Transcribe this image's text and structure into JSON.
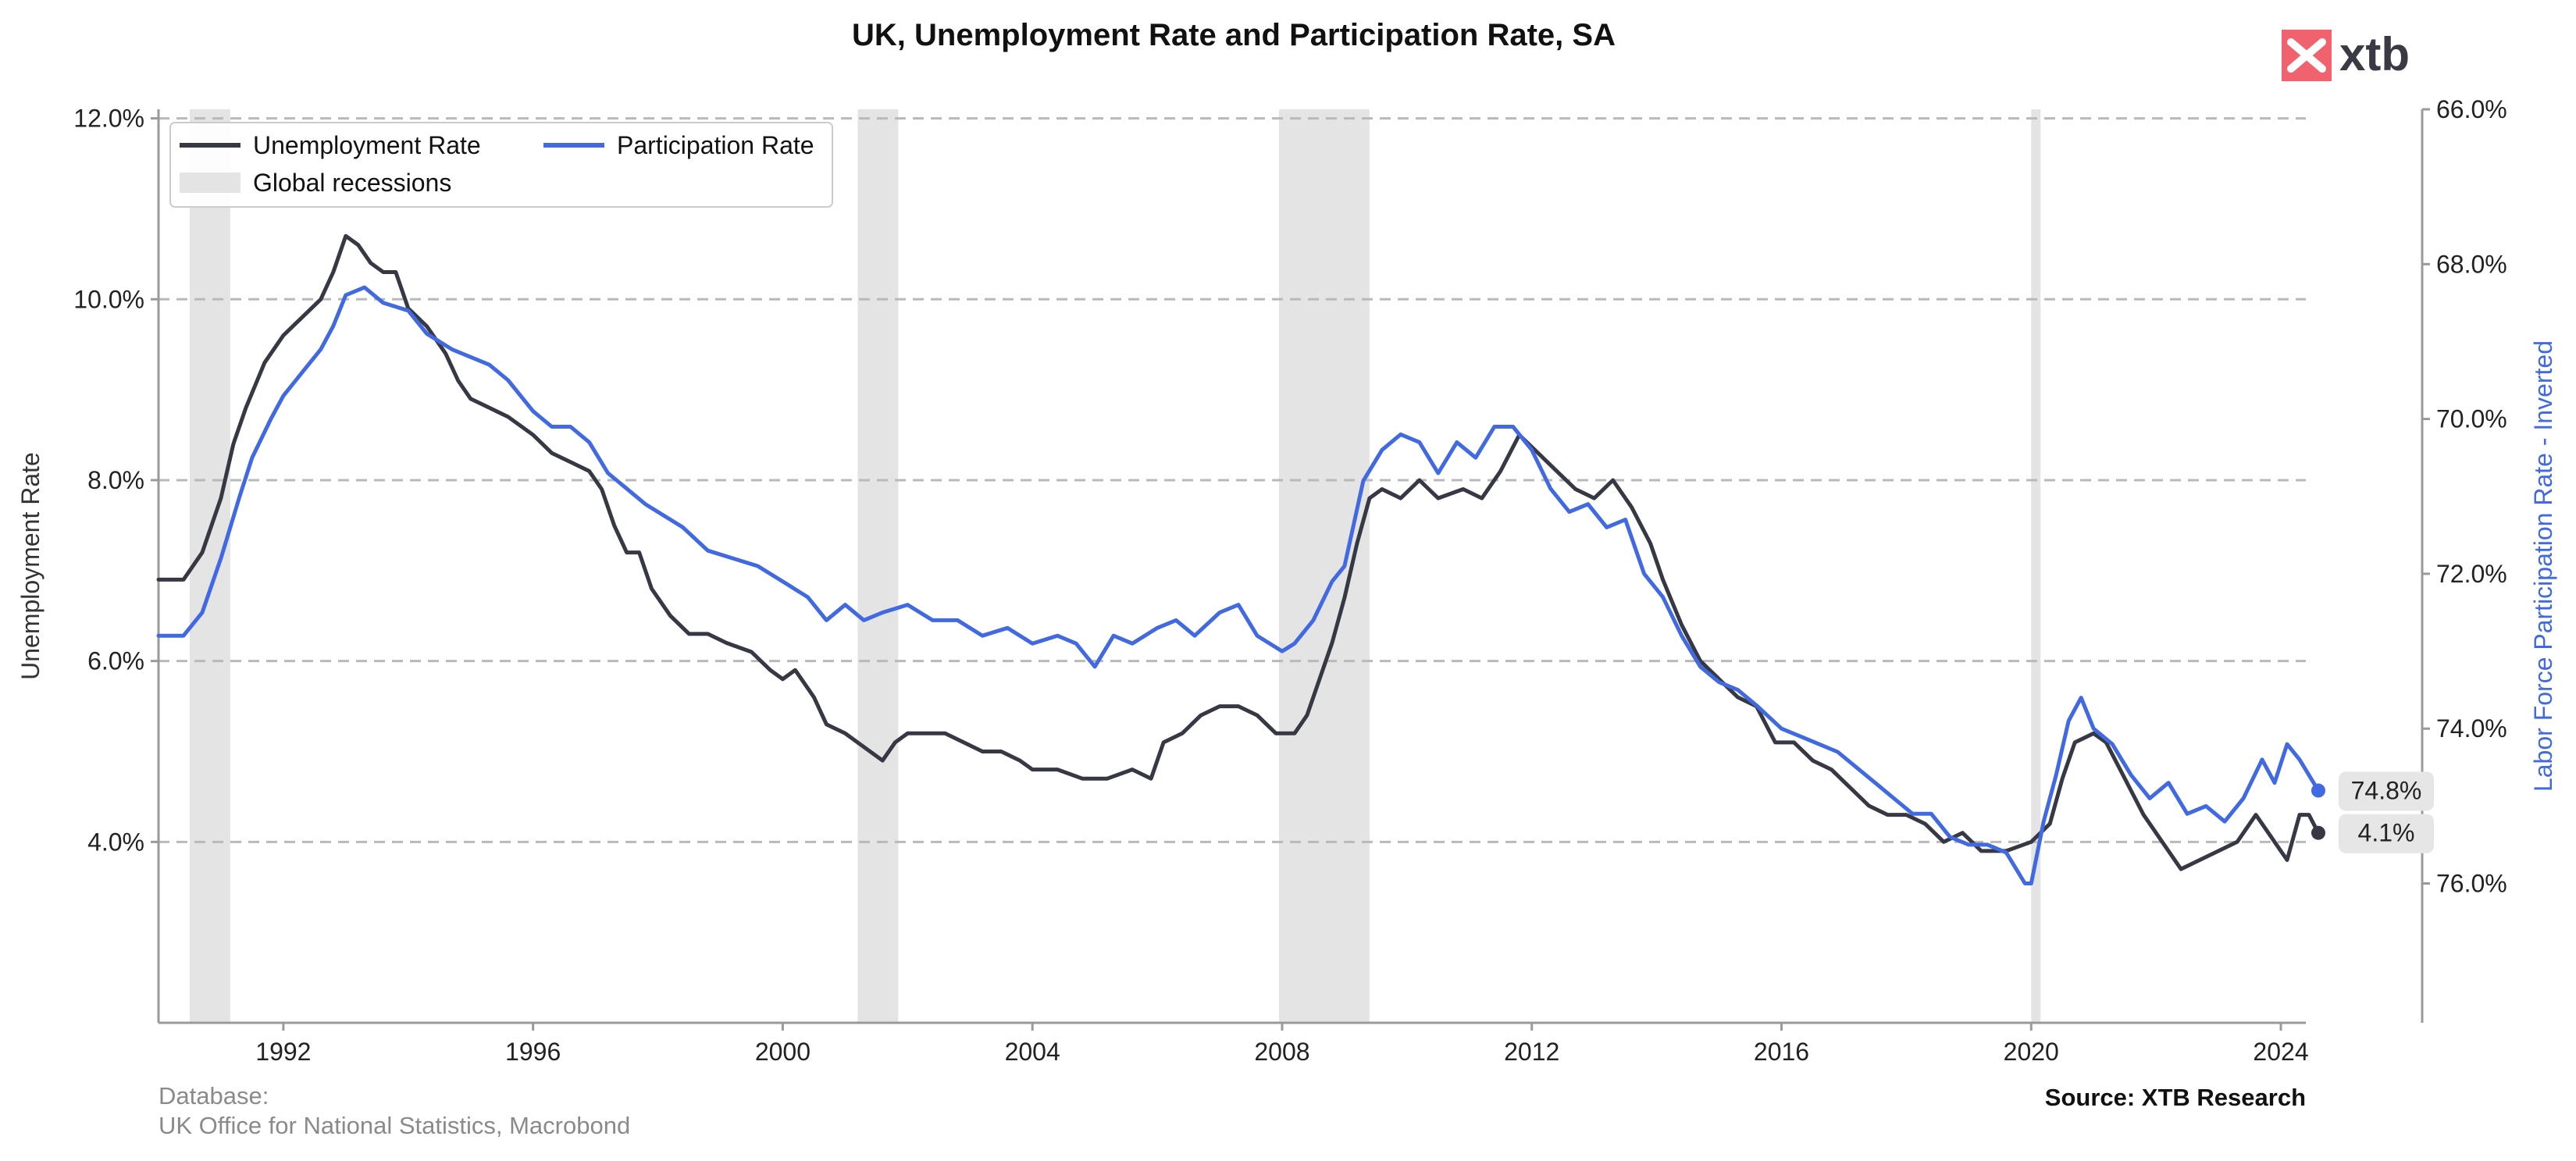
{
  "logo": {
    "text": "xtb",
    "color": "#f0626e"
  },
  "chart_data": {
    "type": "line",
    "title": "UK, Unemployment Rate and Participation Rate, SA",
    "ylabel": "Unemployment Rate",
    "ylabel_right": "Labor Force Participation Rate - Inverted",
    "xlim": [
      1990.0,
      2024.4
    ],
    "ylim": [
      2.0,
      12.1
    ],
    "ylim_right": [
      66.0,
      77.8
    ],
    "right_axis_inverted": true,
    "grid": "y-dashed",
    "legend_position": "top-left",
    "x_ticks": [
      1992,
      1996,
      2000,
      2004,
      2008,
      2012,
      2016,
      2020,
      2024
    ],
    "x_tick_labels": [
      "1992",
      "1996",
      "2000",
      "2004",
      "2008",
      "2012",
      "2016",
      "2020",
      "2024"
    ],
    "y_ticks": [
      4,
      6,
      8,
      10,
      12
    ],
    "y_tick_labels": [
      "4.0%",
      "6.0%",
      "8.0%",
      "10.0%",
      "12.0%"
    ],
    "y_ticks_right": [
      66,
      68,
      70,
      72,
      74,
      76
    ],
    "y_tick_labels_right": [
      "66.0%",
      "68.0%",
      "70.0%",
      "72.0%",
      "74.0%",
      "76.0%"
    ],
    "recessions": [
      [
        1990.5,
        1991.15
      ],
      [
        2001.2,
        2001.85
      ],
      [
        2007.95,
        2009.4
      ],
      [
        2020.0,
        2020.15
      ]
    ],
    "series": [
      {
        "name": "Unemployment Rate",
        "color": "#363844",
        "axis": "left",
        "last_label": "4.1%",
        "points": [
          [
            1990.0,
            6.9
          ],
          [
            1990.4,
            6.9
          ],
          [
            1990.7,
            7.2
          ],
          [
            1991.0,
            7.8
          ],
          [
            1991.2,
            8.4
          ],
          [
            1991.4,
            8.8
          ],
          [
            1991.7,
            9.3
          ],
          [
            1992.0,
            9.6
          ],
          [
            1992.3,
            9.8
          ],
          [
            1992.6,
            10.0
          ],
          [
            1992.8,
            10.3
          ],
          [
            1993.0,
            10.7
          ],
          [
            1993.2,
            10.6
          ],
          [
            1993.4,
            10.4
          ],
          [
            1993.6,
            10.3
          ],
          [
            1993.8,
            10.3
          ],
          [
            1994.0,
            9.9
          ],
          [
            1994.3,
            9.7
          ],
          [
            1994.6,
            9.4
          ],
          [
            1994.8,
            9.1
          ],
          [
            1995.0,
            8.9
          ],
          [
            1995.3,
            8.8
          ],
          [
            1995.6,
            8.7
          ],
          [
            1996.0,
            8.5
          ],
          [
            1996.3,
            8.3
          ],
          [
            1996.6,
            8.2
          ],
          [
            1996.9,
            8.1
          ],
          [
            1997.1,
            7.9
          ],
          [
            1997.3,
            7.5
          ],
          [
            1997.5,
            7.2
          ],
          [
            1997.7,
            7.2
          ],
          [
            1997.9,
            6.8
          ],
          [
            1998.2,
            6.5
          ],
          [
            1998.5,
            6.3
          ],
          [
            1998.8,
            6.3
          ],
          [
            1999.1,
            6.2
          ],
          [
            1999.5,
            6.1
          ],
          [
            1999.8,
            5.9
          ],
          [
            2000.0,
            5.8
          ],
          [
            2000.2,
            5.9
          ],
          [
            2000.5,
            5.6
          ],
          [
            2000.7,
            5.3
          ],
          [
            2001.0,
            5.2
          ],
          [
            2001.2,
            5.1
          ],
          [
            2001.4,
            5.0
          ],
          [
            2001.6,
            4.9
          ],
          [
            2001.8,
            5.1
          ],
          [
            2002.0,
            5.2
          ],
          [
            2002.3,
            5.2
          ],
          [
            2002.6,
            5.2
          ],
          [
            2002.9,
            5.1
          ],
          [
            2003.2,
            5.0
          ],
          [
            2003.5,
            5.0
          ],
          [
            2003.8,
            4.9
          ],
          [
            2004.0,
            4.8
          ],
          [
            2004.4,
            4.8
          ],
          [
            2004.8,
            4.7
          ],
          [
            2005.2,
            4.7
          ],
          [
            2005.6,
            4.8
          ],
          [
            2005.9,
            4.7
          ],
          [
            2006.1,
            5.1
          ],
          [
            2006.4,
            5.2
          ],
          [
            2006.7,
            5.4
          ],
          [
            2007.0,
            5.5
          ],
          [
            2007.3,
            5.5
          ],
          [
            2007.6,
            5.4
          ],
          [
            2007.9,
            5.2
          ],
          [
            2008.2,
            5.2
          ],
          [
            2008.4,
            5.4
          ],
          [
            2008.6,
            5.8
          ],
          [
            2008.8,
            6.2
          ],
          [
            2009.0,
            6.7
          ],
          [
            2009.2,
            7.3
          ],
          [
            2009.4,
            7.8
          ],
          [
            2009.6,
            7.9
          ],
          [
            2009.9,
            7.8
          ],
          [
            2010.2,
            8.0
          ],
          [
            2010.5,
            7.8
          ],
          [
            2010.9,
            7.9
          ],
          [
            2011.2,
            7.8
          ],
          [
            2011.5,
            8.1
          ],
          [
            2011.8,
            8.5
          ],
          [
            2012.1,
            8.3
          ],
          [
            2012.4,
            8.1
          ],
          [
            2012.7,
            7.9
          ],
          [
            2013.0,
            7.8
          ],
          [
            2013.3,
            8.0
          ],
          [
            2013.6,
            7.7
          ],
          [
            2013.9,
            7.3
          ],
          [
            2014.1,
            6.9
          ],
          [
            2014.4,
            6.4
          ],
          [
            2014.7,
            6.0
          ],
          [
            2015.0,
            5.8
          ],
          [
            2015.3,
            5.6
          ],
          [
            2015.6,
            5.5
          ],
          [
            2015.9,
            5.1
          ],
          [
            2016.2,
            5.1
          ],
          [
            2016.5,
            4.9
          ],
          [
            2016.8,
            4.8
          ],
          [
            2017.1,
            4.6
          ],
          [
            2017.4,
            4.4
          ],
          [
            2017.7,
            4.3
          ],
          [
            2018.0,
            4.3
          ],
          [
            2018.3,
            4.2
          ],
          [
            2018.6,
            4.0
          ],
          [
            2018.9,
            4.1
          ],
          [
            2019.2,
            3.9
          ],
          [
            2019.6,
            3.9
          ],
          [
            2020.0,
            4.0
          ],
          [
            2020.3,
            4.2
          ],
          [
            2020.5,
            4.7
          ],
          [
            2020.7,
            5.1
          ],
          [
            2021.0,
            5.2
          ],
          [
            2021.2,
            5.1
          ],
          [
            2021.5,
            4.7
          ],
          [
            2021.8,
            4.3
          ],
          [
            2022.1,
            4.0
          ],
          [
            2022.4,
            3.7
          ],
          [
            2022.7,
            3.8
          ],
          [
            2023.0,
            3.9
          ],
          [
            2023.3,
            4.0
          ],
          [
            2023.6,
            4.3
          ],
          [
            2023.9,
            4.0
          ],
          [
            2024.1,
            3.8
          ],
          [
            2024.3,
            4.3
          ],
          [
            2024.45,
            4.3
          ],
          [
            2024.6,
            4.1
          ]
        ]
      },
      {
        "name": "Participation Rate",
        "color": "#4169e1",
        "axis": "right",
        "last_label": "74.8%",
        "points": [
          [
            1990.0,
            72.8
          ],
          [
            1990.4,
            72.8
          ],
          [
            1990.7,
            72.5
          ],
          [
            1991.0,
            71.8
          ],
          [
            1991.3,
            71.0
          ],
          [
            1991.5,
            70.5
          ],
          [
            1991.8,
            70.0
          ],
          [
            1992.0,
            69.7
          ],
          [
            1992.3,
            69.4
          ],
          [
            1992.6,
            69.1
          ],
          [
            1992.8,
            68.8
          ],
          [
            1993.0,
            68.4
          ],
          [
            1993.3,
            68.3
          ],
          [
            1993.6,
            68.5
          ],
          [
            1994.0,
            68.6
          ],
          [
            1994.3,
            68.9
          ],
          [
            1994.7,
            69.1
          ],
          [
            1995.0,
            69.2
          ],
          [
            1995.3,
            69.3
          ],
          [
            1995.6,
            69.5
          ],
          [
            1996.0,
            69.9
          ],
          [
            1996.3,
            70.1
          ],
          [
            1996.6,
            70.1
          ],
          [
            1996.9,
            70.3
          ],
          [
            1997.2,
            70.7
          ],
          [
            1997.5,
            70.9
          ],
          [
            1997.8,
            71.1
          ],
          [
            1998.0,
            71.2
          ],
          [
            1998.4,
            71.4
          ],
          [
            1998.8,
            71.7
          ],
          [
            1999.2,
            71.8
          ],
          [
            1999.6,
            71.9
          ],
          [
            2000.0,
            72.1
          ],
          [
            2000.4,
            72.3
          ],
          [
            2000.7,
            72.6
          ],
          [
            2001.0,
            72.4
          ],
          [
            2001.3,
            72.6
          ],
          [
            2001.6,
            72.5
          ],
          [
            2002.0,
            72.4
          ],
          [
            2002.4,
            72.6
          ],
          [
            2002.8,
            72.6
          ],
          [
            2003.2,
            72.8
          ],
          [
            2003.6,
            72.7
          ],
          [
            2004.0,
            72.9
          ],
          [
            2004.4,
            72.8
          ],
          [
            2004.7,
            72.9
          ],
          [
            2005.0,
            73.2
          ],
          [
            2005.3,
            72.8
          ],
          [
            2005.6,
            72.9
          ],
          [
            2006.0,
            72.7
          ],
          [
            2006.3,
            72.6
          ],
          [
            2006.6,
            72.8
          ],
          [
            2007.0,
            72.5
          ],
          [
            2007.3,
            72.4
          ],
          [
            2007.6,
            72.8
          ],
          [
            2008.0,
            73.0
          ],
          [
            2008.2,
            72.9
          ],
          [
            2008.5,
            72.6
          ],
          [
            2008.8,
            72.1
          ],
          [
            2009.0,
            71.9
          ],
          [
            2009.3,
            70.8
          ],
          [
            2009.6,
            70.4
          ],
          [
            2009.9,
            70.2
          ],
          [
            2010.2,
            70.3
          ],
          [
            2010.5,
            70.7
          ],
          [
            2010.8,
            70.3
          ],
          [
            2011.1,
            70.5
          ],
          [
            2011.4,
            70.1
          ],
          [
            2011.7,
            70.1
          ],
          [
            2012.0,
            70.4
          ],
          [
            2012.3,
            70.9
          ],
          [
            2012.6,
            71.2
          ],
          [
            2012.9,
            71.1
          ],
          [
            2013.2,
            71.4
          ],
          [
            2013.5,
            71.3
          ],
          [
            2013.8,
            72.0
          ],
          [
            2014.1,
            72.3
          ],
          [
            2014.4,
            72.8
          ],
          [
            2014.7,
            73.2
          ],
          [
            2015.0,
            73.4
          ],
          [
            2015.3,
            73.5
          ],
          [
            2015.6,
            73.7
          ],
          [
            2016.0,
            74.0
          ],
          [
            2016.3,
            74.1
          ],
          [
            2016.6,
            74.2
          ],
          [
            2016.9,
            74.3
          ],
          [
            2017.2,
            74.5
          ],
          [
            2017.5,
            74.7
          ],
          [
            2017.8,
            74.9
          ],
          [
            2018.1,
            75.1
          ],
          [
            2018.4,
            75.1
          ],
          [
            2018.7,
            75.4
          ],
          [
            2019.0,
            75.5
          ],
          [
            2019.3,
            75.5
          ],
          [
            2019.6,
            75.6
          ],
          [
            2019.9,
            76.0
          ],
          [
            2020.0,
            76.0
          ],
          [
            2020.2,
            75.2
          ],
          [
            2020.4,
            74.6
          ],
          [
            2020.6,
            73.9
          ],
          [
            2020.8,
            73.6
          ],
          [
            2021.0,
            74.0
          ],
          [
            2021.3,
            74.2
          ],
          [
            2021.6,
            74.6
          ],
          [
            2021.9,
            74.9
          ],
          [
            2022.2,
            74.7
          ],
          [
            2022.5,
            75.1
          ],
          [
            2022.8,
            75.0
          ],
          [
            2023.1,
            75.2
          ],
          [
            2023.4,
            74.9
          ],
          [
            2023.7,
            74.4
          ],
          [
            2023.9,
            74.7
          ],
          [
            2024.1,
            74.2
          ],
          [
            2024.3,
            74.4
          ],
          [
            2024.6,
            74.8
          ]
        ]
      }
    ],
    "legend": [
      "Unemployment Rate",
      "Participation Rate",
      "Global recessions"
    ],
    "recession_color": "#e4e4e4",
    "footnote_left": [
      "Database:",
      "UK Office for National Statistics, Macrobond"
    ],
    "source": "Source: XTB Research"
  }
}
